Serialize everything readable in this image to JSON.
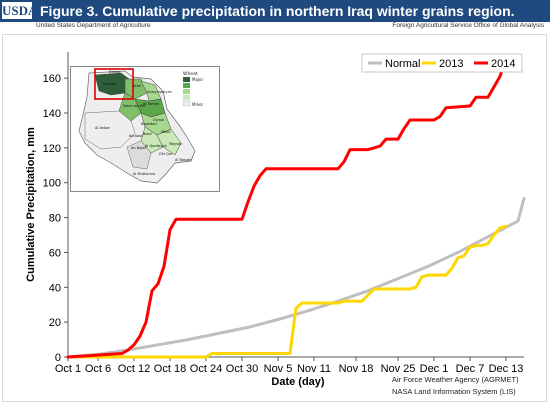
{
  "header": {
    "logo_text": "USDA",
    "title": "Figure 3.  Cumulative precipitation  in northern Iraq winter grains region.",
    "agency": "United States Department of Agriculture",
    "office": "Foreign Agricultural Service  Office of Global Analysis"
  },
  "colors": {
    "header_bg": "#1f4a80",
    "normal": "#bfbfbf",
    "y2013": "#ffd700",
    "y2014": "#ff0000"
  },
  "credits": {
    "line1": "Air Force Weather Agency (AGRMET)",
    "line2": "NASA Land Information System (LIS)"
  },
  "inset_map": {
    "legend_title": "Wheat",
    "legend_items": [
      "Major",
      "Minor"
    ],
    "region_labels": [
      "Dahuk",
      "Ninawa",
      "Arbil",
      "Sulaymaniyah",
      "Salah ad-Din",
      "At Tamim",
      "Al Anbar",
      "Diyala",
      "Baghdad",
      "Wasit",
      "Babil",
      "Karbala",
      "An Najaf",
      "Al Qadisiyah",
      "Maysan",
      "Dhi Qar",
      "Al Basrah",
      "Al Muthanna"
    ]
  },
  "chart_data": {
    "type": "line",
    "title": "",
    "xlabel": "Date (day)",
    "ylabel": "Cumulative Precipitation, mm",
    "ylim": [
      0,
      175
    ],
    "y_ticks": [
      0,
      20,
      40,
      60,
      80,
      100,
      120,
      140,
      160
    ],
    "x_range_days": [
      0,
      76
    ],
    "x_ticks": [
      {
        "label": "Oct 1",
        "day": 0
      },
      {
        "label": "Oct 6",
        "day": 5
      },
      {
        "label": "Oct 12",
        "day": 11
      },
      {
        "label": "Oct 18",
        "day": 17
      },
      {
        "label": "Oct 24",
        "day": 23
      },
      {
        "label": "Oct 30",
        "day": 29
      },
      {
        "label": "Nov 5",
        "day": 35
      },
      {
        "label": "Nov 11",
        "day": 41
      },
      {
        "label": "Nov 18",
        "day": 48
      },
      {
        "label": "Nov 25",
        "day": 55
      },
      {
        "label": "Dec 1",
        "day": 61
      },
      {
        "label": "Dec 7",
        "day": 67
      },
      {
        "label": "Dec 13",
        "day": 73
      }
    ],
    "grid": false,
    "legend_position": "top-right",
    "series": [
      {
        "name": "Normal",
        "color": "#bfbfbf",
        "points": [
          [
            0,
            0
          ],
          [
            5,
            1.5
          ],
          [
            10,
            4
          ],
          [
            15,
            7
          ],
          [
            20,
            10
          ],
          [
            25,
            13.5
          ],
          [
            30,
            17
          ],
          [
            35,
            21.5
          ],
          [
            40,
            26.5
          ],
          [
            45,
            32
          ],
          [
            50,
            38
          ],
          [
            55,
            45
          ],
          [
            60,
            52
          ],
          [
            65,
            60
          ],
          [
            70,
            69
          ],
          [
            75,
            78
          ],
          [
            76,
            91
          ]
        ]
      },
      {
        "name": "2013",
        "color": "#ffd700",
        "points": [
          [
            0,
            0
          ],
          [
            23,
            0
          ],
          [
            24,
            2
          ],
          [
            37,
            2
          ],
          [
            38,
            28
          ],
          [
            39,
            31
          ],
          [
            45,
            31
          ],
          [
            46,
            32
          ],
          [
            49,
            32
          ],
          [
            51,
            39
          ],
          [
            57,
            39
          ],
          [
            58,
            40
          ],
          [
            59,
            46
          ],
          [
            60,
            47
          ],
          [
            63,
            47
          ],
          [
            64,
            51
          ],
          [
            65,
            57
          ],
          [
            66,
            58
          ],
          [
            67,
            63
          ],
          [
            68,
            64
          ],
          [
            69,
            64
          ],
          [
            70,
            65
          ],
          [
            71,
            70
          ],
          [
            72,
            74
          ],
          [
            73,
            75
          ]
        ]
      },
      {
        "name": "2014",
        "color": "#ff0000",
        "points": [
          [
            0,
            0
          ],
          [
            9,
            2
          ],
          [
            10,
            4
          ],
          [
            11,
            7
          ],
          [
            12,
            12
          ],
          [
            13,
            20
          ],
          [
            14,
            38
          ],
          [
            15,
            42
          ],
          [
            16,
            52
          ],
          [
            17,
            73
          ],
          [
            18,
            79
          ],
          [
            29,
            79
          ],
          [
            30,
            89
          ],
          [
            31,
            98
          ],
          [
            32,
            104
          ],
          [
            33,
            108
          ],
          [
            45,
            108
          ],
          [
            46,
            112
          ],
          [
            47,
            119
          ],
          [
            50,
            119
          ],
          [
            51,
            120
          ],
          [
            52,
            121
          ],
          [
            53,
            125
          ],
          [
            55,
            125
          ],
          [
            56,
            131
          ],
          [
            57,
            136
          ],
          [
            61,
            136
          ],
          [
            62,
            138
          ],
          [
            63,
            143
          ],
          [
            67,
            144
          ],
          [
            68,
            149
          ],
          [
            70,
            149
          ],
          [
            71,
            155
          ],
          [
            72,
            161
          ],
          [
            73,
            172
          ],
          [
            74,
            172
          ]
        ]
      }
    ]
  }
}
